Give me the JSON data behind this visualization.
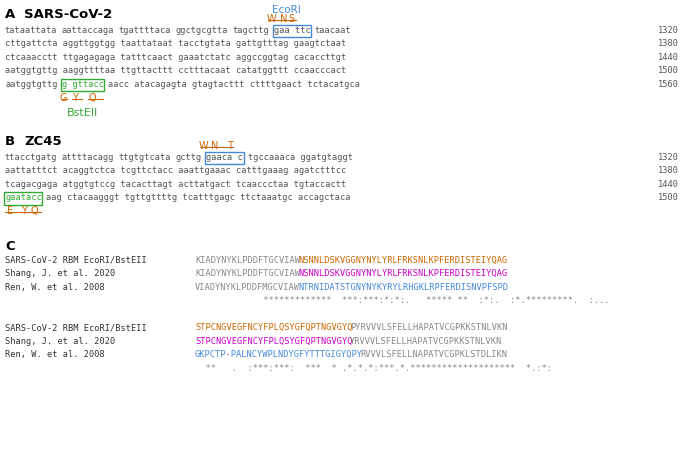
{
  "figsize": [
    6.96,
    4.61
  ],
  "dpi": 100,
  "bg_color": "#ffffff",
  "sectionA_label": "A",
  "sectionA_title": "SARS-CoV-2",
  "ecori_label": "EcoRI",
  "ecori_color": "#4488dd",
  "wns_labels": [
    "W",
    "N",
    "S"
  ],
  "wns_color": "#cc6600",
  "gyq_sars": [
    "G",
    "Y",
    "Q"
  ],
  "gyq_color": "#cc6600",
  "bstell_label": "BstEII",
  "bstell_color": "#33aa33",
  "sectionB_label": "B",
  "sectionB_title": "ZC45",
  "wnt_labels": [
    "W",
    "N",
    "T"
  ],
  "wnt_color": "#cc6600",
  "eyq_zc45": [
    "E",
    "Y",
    "Q"
  ],
  "eyq_color": "#cc6600",
  "sectionC_label": "C",
  "seq_color": "#555555",
  "num_color": "#555555",
  "alignment_colors": [
    "#cc6600",
    "#cc00cc",
    "#4488dd"
  ],
  "mono_fontsize": 6.2,
  "seq_fontsize": 6.2,
  "label_fontsize": 8.5,
  "title_fontsize": 9.5,
  "annot_fontsize": 7.0,
  "ecori_fontsize": 7.5,
  "bstell_fontsize": 8.0
}
